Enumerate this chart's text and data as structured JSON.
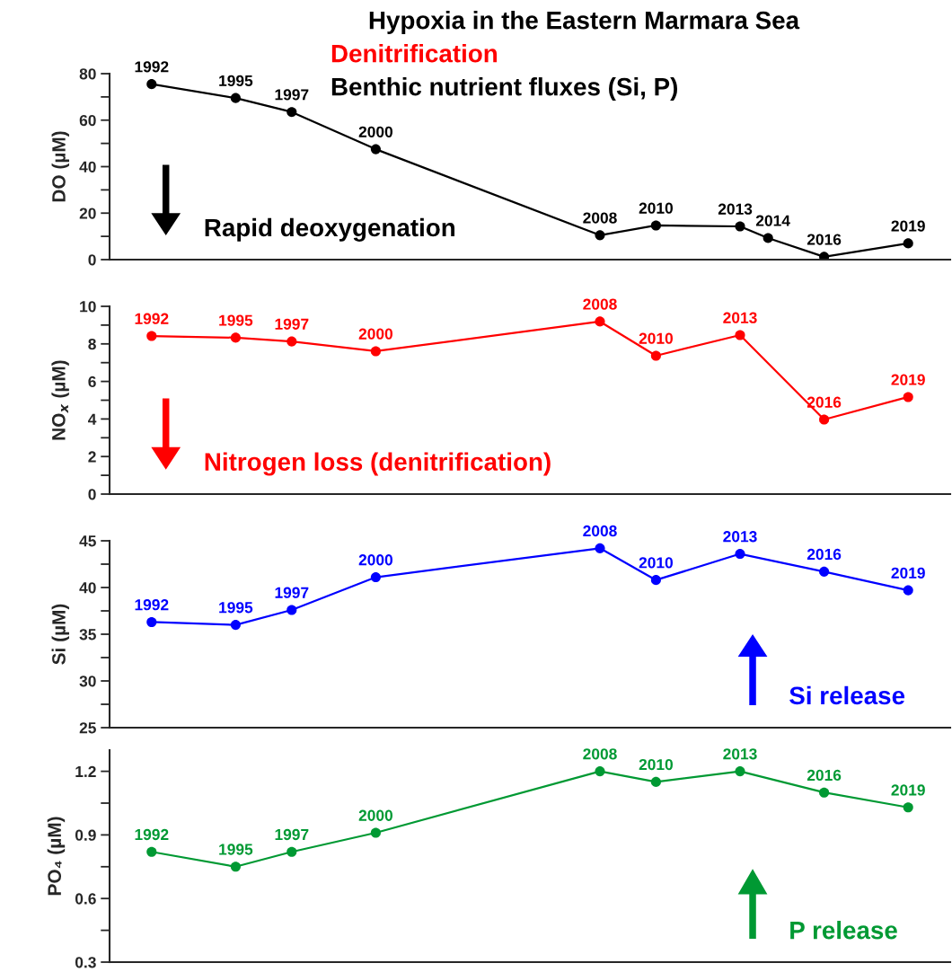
{
  "chart_data": [
    {
      "type": "line",
      "title": "Hypoxia in the Eastern Marmara Sea",
      "subtitle": "Denitrification\nBenthic nutrient fluxes (Si, P)",
      "ylabel": "DO (µM)",
      "categories": [
        null,
        null,
        null,
        null,
        null,
        null,
        null,
        null,
        null,
        null,
        null,
        null,
        null,
        null,
        null,
        null,
        null,
        null,
        null,
        null,
        null,
        null,
        null,
        null,
        null,
        null,
        null,
        null,
        null,
        null
      ],
      "series": [
        {
          "color": "#000000",
          "values": [
            null,
            75.5,
            null,
            null,
            69.5,
            null,
            63.5,
            null,
            null,
            47.5,
            null,
            null,
            null,
            null,
            null,
            null,
            null,
            10.5,
            null,
            14.7,
            null,
            null,
            14.3,
            9.3,
            null,
            1.2,
            null,
            null,
            7.0,
            null
          ]
        }
      ],
      "ylim": [
        0,
        80
      ],
      "yticks": [
        0,
        {
          "value": 10,
          "label": null
        },
        20,
        {
          "value": 30,
          "label": null
        },
        40,
        {
          "value": 50,
          "label": null
        },
        60,
        {
          "value": 70,
          "label": null
        },
        80
      ],
      "tick_labels": "y",
      "marker": "circle",
      "line_style": "solid",
      "annotations": [
        {
          "text": "1992",
          "y": 75.5
        },
        {
          "text": "1995",
          "y": 69.5
        },
        {
          "text": "1997",
          "y": 63.5
        },
        {
          "text": "2000",
          "y": 47.5
        },
        {
          "text": "2008",
          "y": 10.5
        },
        {
          "text": "2010",
          "y": 14.7
        },
        {
          "text": "2013",
          "y": 14.3
        },
        {
          "text": "2014",
          "y": 9.3
        },
        {
          "text": "2016",
          "y": 1.2
        },
        {
          "text": "2019",
          "y": 7.0
        },
        "Rapid deoxygenation"
      ]
    },
    {
      "type": "line",
      "ylabel": "NO$_{x}$ (µM)",
      "categories": [
        null,
        null,
        null,
        null,
        null,
        null,
        null,
        null,
        null,
        null,
        null,
        null,
        null,
        null,
        null,
        null,
        null,
        null,
        null,
        null,
        null,
        null,
        null,
        null,
        null,
        null,
        null,
        null,
        null,
        null
      ],
      "series": [
        {
          "color": "#ff0000",
          "values": [
            null,
            8.42,
            null,
            null,
            8.33,
            null,
            8.13,
            null,
            null,
            7.61,
            null,
            null,
            null,
            null,
            null,
            null,
            null,
            9.19,
            null,
            7.37,
            null,
            null,
            8.47,
            null,
            null,
            3.97,
            null,
            null,
            5.17,
            null
          ]
        }
      ],
      "ylim": [
        0,
        10
      ],
      "yticks": [
        0,
        {
          "value": 1,
          "label": null
        },
        2,
        {
          "value": 3,
          "label": null
        },
        4,
        {
          "value": 5,
          "label": null
        },
        6,
        {
          "value": 7,
          "label": null
        },
        8,
        {
          "value": 9,
          "label": null
        },
        10
      ],
      "tick_labels": "y",
      "marker": "circle",
      "line_style": "solid",
      "annotations": [
        {
          "text": "1992",
          "y": 8.42
        },
        {
          "text": "1995",
          "y": 8.33
        },
        {
          "text": "1997",
          "y": 8.13
        },
        {
          "text": "2000",
          "y": 7.61
        },
        {
          "text": "2008",
          "y": 9.19
        },
        {
          "text": "2010",
          "y": 7.37
        },
        {
          "text": "2013",
          "y": 8.47
        },
        {
          "text": "2016",
          "y": 3.97
        },
        {
          "text": "2019",
          "y": 5.17
        },
        "Nitrogen loss (denitrification)"
      ]
    },
    {
      "type": "line",
      "ylabel": "Si (µM)",
      "categories": [
        null,
        null,
        null,
        null,
        null,
        null,
        null,
        null,
        null,
        null,
        null,
        null,
        null,
        null,
        null,
        null,
        null,
        null,
        null,
        null,
        null,
        null,
        null,
        null,
        null,
        null,
        null,
        null,
        null,
        null
      ],
      "series": [
        {
          "color": "#0000ff",
          "values": [
            null,
            36.3,
            null,
            null,
            36.0,
            null,
            37.6,
            null,
            null,
            41.1,
            null,
            null,
            null,
            null,
            null,
            null,
            null,
            44.2,
            null,
            40.8,
            null,
            null,
            43.6,
            null,
            null,
            41.7,
            null,
            null,
            39.7,
            null
          ]
        }
      ],
      "ylim": [
        25,
        45
      ],
      "yticks": [
        25,
        {
          "value": 27.5,
          "label": null
        },
        30,
        {
          "value": 32.5,
          "label": null
        },
        35,
        {
          "value": 37.5,
          "label": null
        },
        40,
        {
          "value": 42.5,
          "label": null
        },
        45
      ],
      "tick_labels": "y",
      "marker": "circle",
      "line_style": "solid",
      "annotations": [
        {
          "text": "1992",
          "y": 36.3
        },
        {
          "text": "1995",
          "y": 36.0
        },
        {
          "text": "1997",
          "y": 37.6
        },
        {
          "text": "2000",
          "y": 41.1
        },
        {
          "text": "2008",
          "y": 44.2
        },
        {
          "text": "2010",
          "y": 40.8
        },
        {
          "text": "2013",
          "y": 43.6
        },
        {
          "text": "2016",
          "y": 41.7
        },
        {
          "text": "2019",
          "y": 39.7
        },
        "Si release"
      ]
    },
    {
      "type": "line",
      "ylabel": "PO₄ (µM)",
      "categories": [
        null,
        null,
        null,
        null,
        null,
        null,
        null,
        null,
        null,
        null,
        null,
        null,
        null,
        null,
        null,
        null,
        null,
        null,
        null,
        null,
        null,
        null,
        null,
        null,
        null,
        null,
        null,
        null,
        null,
        null
      ],
      "series": [
        {
          "color": "#009933",
          "values": [
            null,
            0.82,
            null,
            null,
            0.75,
            null,
            0.82,
            null,
            null,
            0.91,
            null,
            null,
            null,
            null,
            null,
            null,
            null,
            1.2,
            null,
            1.15,
            null,
            null,
            1.2,
            null,
            null,
            1.1,
            null,
            null,
            1.03,
            null
          ]
        }
      ],
      "ylim": [
        0.3,
        1.3
      ],
      "yticks": [
        0.3,
        {
          "value": 0.45,
          "label": null
        },
        0.6,
        {
          "value": 0.75,
          "label": null
        },
        0.9,
        {
          "value": 1.05,
          "label": null
        },
        1.2
      ],
      "tick_labels": "y",
      "marker": "circle",
      "line_style": "solid",
      "annotations": [
        {
          "text": "1992",
          "y": 0.82
        },
        {
          "text": "1995",
          "y": 0.75
        },
        {
          "text": "1997",
          "y": 0.82
        },
        {
          "text": "2000",
          "y": 0.91
        },
        {
          "text": "2008",
          "y": 1.2
        },
        {
          "text": "2010",
          "y": 1.15
        },
        {
          "text": "2013",
          "y": 1.2
        },
        {
          "text": "2016",
          "y": 1.1
        },
        {
          "text": "2019",
          "y": 1.03
        },
        "P release"
      ]
    }
  ]
}
